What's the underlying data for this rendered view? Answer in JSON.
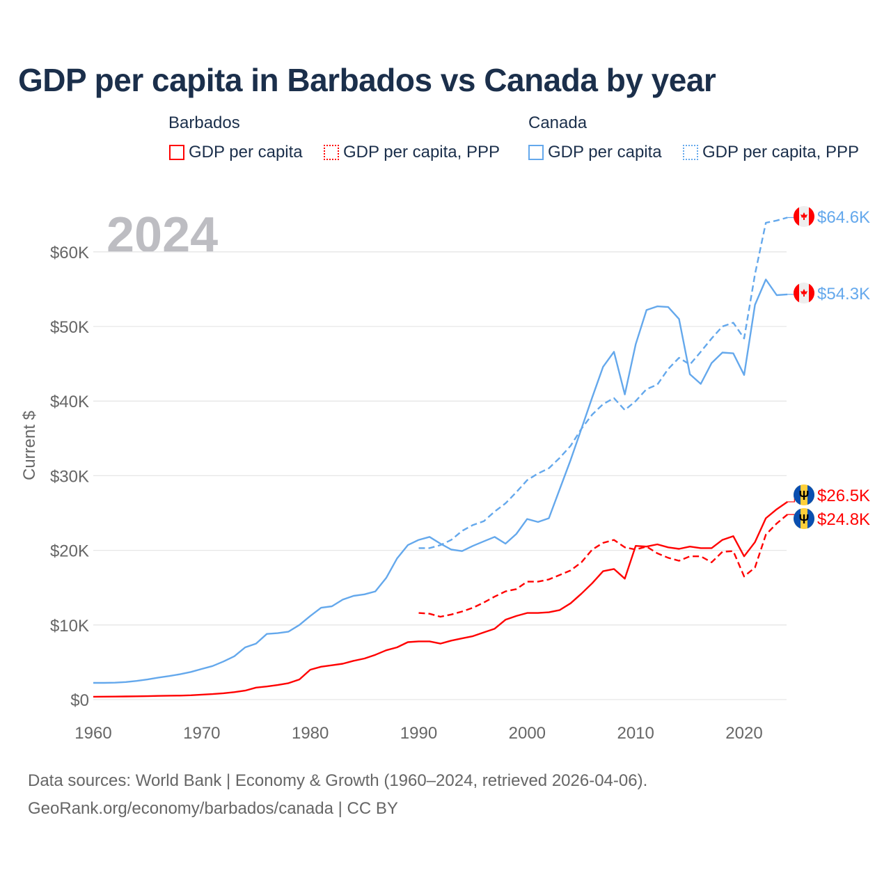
{
  "chart_data": {
    "type": "line",
    "title": "GDP per capita in Barbados vs Canada by year",
    "ylabel": "Current $",
    "xlabel": "",
    "year_watermark": "2024",
    "xlim": [
      1960,
      2024
    ],
    "ylim": [
      0,
      65000
    ],
    "x_ticks": [
      1960,
      1970,
      1980,
      1990,
      2000,
      2010,
      2020
    ],
    "x_tick_labels": [
      "1960",
      "1970",
      "1980",
      "1990",
      "2000",
      "2010",
      "2020"
    ],
    "y_ticks": [
      0,
      10000,
      20000,
      30000,
      40000,
      50000,
      60000
    ],
    "y_tick_labels": [
      "$0",
      "$10K",
      "$20K",
      "$30K",
      "$40K",
      "$50K",
      "$60K"
    ],
    "grid": true,
    "legend": {
      "groups": [
        {
          "name": "Barbados",
          "items": [
            "GDP per capita",
            "GDP per capita, PPP"
          ]
        },
        {
          "name": "Canada",
          "items": [
            "GDP per capita",
            "GDP per capita, PPP"
          ]
        }
      ],
      "placement": "top"
    },
    "series": [
      {
        "name": "Canada GDP per capita",
        "country": "Canada",
        "style": "solid",
        "color": "#64a8ec",
        "end_label": "$54.3K",
        "start_year": 1960,
        "values": [
          2240,
          2240,
          2270,
          2350,
          2500,
          2700,
          2950,
          3150,
          3400,
          3700,
          4100,
          4500,
          5100,
          5800,
          7000,
          7500,
          8800,
          8900,
          9100,
          10000,
          11200,
          12300,
          12500,
          13400,
          13900,
          14100,
          14500,
          16300,
          18900,
          20700,
          21400,
          21800,
          20900,
          20100,
          19900,
          20600,
          21200,
          21800,
          20900,
          22200,
          24200,
          23800,
          24300,
          28200,
          32100,
          36300,
          40500,
          44600,
          46600,
          40900,
          47600,
          52200,
          52700,
          52600,
          51000,
          43600,
          42300,
          45100,
          46500,
          46400,
          43500,
          52900,
          56300,
          54200,
          54300
        ]
      },
      {
        "name": "Canada GDP per capita, PPP",
        "country": "Canada",
        "style": "dashed",
        "color": "#64a8ec",
        "end_label": "$64.6K",
        "start_year": 1990,
        "values": [
          20300,
          20300,
          20700,
          21400,
          22600,
          23400,
          23900,
          25200,
          26300,
          27800,
          29400,
          30300,
          31000,
          32400,
          34000,
          36300,
          38200,
          39600,
          40400,
          38800,
          40000,
          41600,
          42200,
          44300,
          45800,
          44900,
          46600,
          48400,
          50000,
          50500,
          48400,
          57000,
          63900,
          64200,
          64600
        ]
      },
      {
        "name": "Barbados GDP per capita",
        "country": "Barbados",
        "style": "solid",
        "color": "#ff0000",
        "end_label": "$26.5K",
        "start_year": 1960,
        "values": [
          380,
          390,
          400,
          420,
          440,
          460,
          490,
          520,
          530,
          580,
          660,
          740,
          850,
          1000,
          1200,
          1600,
          1750,
          1950,
          2200,
          2700,
          4000,
          4400,
          4600,
          4800,
          5200,
          5500,
          6000,
          6600,
          7000,
          7700,
          7800,
          7800,
          7500,
          7900,
          8200,
          8500,
          9000,
          9500,
          10700,
          11200,
          11600,
          11600,
          11700,
          12000,
          12900,
          14200,
          15600,
          17200,
          17500,
          16200,
          20600,
          20500,
          20800,
          20400,
          20200,
          20500,
          20300,
          20300,
          21400,
          21900,
          19200,
          21100,
          24300,
          25500,
          26500
        ]
      },
      {
        "name": "Barbados GDP per capita, PPP",
        "country": "Barbados",
        "style": "dashed",
        "color": "#ff0000",
        "end_label": "$24.8K",
        "start_year": 1990,
        "values": [
          11600,
          11500,
          11100,
          11400,
          11800,
          12300,
          13000,
          13800,
          14500,
          14800,
          15800,
          15800,
          16100,
          16700,
          17300,
          18400,
          20100,
          21000,
          21400,
          20400,
          20100,
          20500,
          19600,
          19000,
          18600,
          19200,
          19200,
          18400,
          19800,
          19900,
          16500,
          17700,
          22100,
          23600,
          24800
        ]
      }
    ]
  },
  "footer": {
    "line1": "Data sources: World Bank | Economy & Growth (1960–2024, retrieved 2026-04-06).",
    "line2": "GeoRank.org/economy/barbados/canada | CC BY"
  },
  "colors": {
    "barbados": "#ff0000",
    "canada": "#64a8ec",
    "title": "#1b2f4b",
    "grid": "#e6e6e6",
    "axis_text": "#666666"
  }
}
